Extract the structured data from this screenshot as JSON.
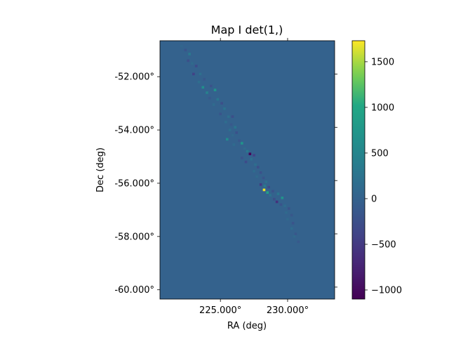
{
  "chart_data": {
    "type": "heatmap",
    "title": "Map I det(1,)",
    "xlabel": "RA (deg)",
    "ylabel": "Dec (deg)",
    "x_ticks": [
      225.0,
      230.0
    ],
    "x_tick_labels": [
      "225.000°",
      "230.000°"
    ],
    "y_ticks": [
      -52.0,
      -54.0,
      -56.0,
      -58.0,
      -60.0
    ],
    "y_tick_labels": [
      "-52.000°",
      "-54.000°",
      "-56.000°",
      "-58.000°",
      "-60.000°"
    ],
    "xlim": [
      220.5,
      233.5
    ],
    "ylim": [
      -60.35,
      -50.65
    ],
    "background_value": 0,
    "colorbar": {
      "colormap": "viridis",
      "range": [
        -1100,
        1730
      ],
      "ticks": [
        1500,
        1000,
        500,
        0,
        -500,
        -1000
      ],
      "tick_labels": [
        "1500",
        "1000",
        "500",
        "0",
        "−500",
        "−1000"
      ]
    },
    "track_pixels": [
      [
        222.1,
        -50.85,
        60
      ],
      [
        222.4,
        -51.0,
        -180
      ],
      [
        222.7,
        -51.15,
        350
      ],
      [
        222.6,
        -51.4,
        -250
      ],
      [
        222.9,
        -51.5,
        120
      ],
      [
        223.2,
        -51.6,
        -300
      ],
      [
        223.0,
        -51.9,
        -420
      ],
      [
        223.5,
        -51.9,
        200
      ],
      [
        223.8,
        -52.1,
        -150
      ],
      [
        223.4,
        -52.2,
        180
      ],
      [
        223.7,
        -52.4,
        650
      ],
      [
        224.3,
        -52.35,
        -200
      ],
      [
        224.0,
        -52.6,
        450
      ],
      [
        224.6,
        -52.5,
        750
      ],
      [
        224.2,
        -52.8,
        -120
      ],
      [
        224.8,
        -52.85,
        300
      ],
      [
        225.1,
        -53.0,
        -250
      ],
      [
        224.5,
        -53.05,
        150
      ],
      [
        225.3,
        -53.2,
        250
      ],
      [
        225.0,
        -53.4,
        -180
      ],
      [
        225.6,
        -53.5,
        200
      ],
      [
        225.9,
        -53.5,
        -250
      ],
      [
        225.4,
        -53.7,
        160
      ],
      [
        225.8,
        -53.8,
        -120
      ],
      [
        226.1,
        -53.9,
        300
      ],
      [
        225.7,
        -54.0,
        180
      ],
      [
        226.2,
        -54.1,
        -220
      ],
      [
        225.9,
        -54.2,
        100
      ],
      [
        225.5,
        -54.35,
        600
      ],
      [
        226.4,
        -54.4,
        -150
      ],
      [
        226.6,
        -54.5,
        700
      ],
      [
        226.0,
        -54.55,
        150
      ],
      [
        226.8,
        -54.7,
        120
      ],
      [
        227.0,
        -54.8,
        350
      ],
      [
        227.2,
        -54.9,
        -1050
      ],
      [
        227.5,
        -54.95,
        -400
      ],
      [
        226.6,
        -55.05,
        -180
      ],
      [
        227.3,
        -55.1,
        200
      ],
      [
        226.9,
        -55.2,
        -300
      ],
      [
        227.6,
        -55.3,
        180
      ],
      [
        227.8,
        -55.4,
        -250
      ],
      [
        227.5,
        -55.55,
        150
      ],
      [
        228.0,
        -55.6,
        -220
      ],
      [
        227.7,
        -55.75,
        120
      ],
      [
        228.2,
        -55.8,
        -180
      ],
      [
        228.4,
        -55.95,
        200
      ],
      [
        228.0,
        -56.05,
        -500
      ],
      [
        228.3,
        -56.1,
        350
      ],
      [
        228.6,
        -56.15,
        -300
      ],
      [
        228.25,
        -56.25,
        1700
      ],
      [
        228.5,
        -56.35,
        900
      ],
      [
        228.9,
        -56.3,
        -200
      ],
      [
        228.7,
        -56.45,
        250
      ],
      [
        229.3,
        -56.4,
        300
      ],
      [
        229.6,
        -56.55,
        700
      ],
      [
        229.0,
        -56.6,
        -250
      ],
      [
        229.2,
        -56.7,
        -600
      ],
      [
        229.5,
        -56.8,
        -180
      ],
      [
        229.8,
        -56.85,
        150
      ],
      [
        230.1,
        -56.95,
        -200
      ],
      [
        229.9,
        -57.1,
        120
      ],
      [
        230.3,
        -57.2,
        -150
      ],
      [
        230.0,
        -57.35,
        100
      ],
      [
        230.4,
        -57.5,
        -180
      ],
      [
        230.3,
        -57.7,
        150
      ],
      [
        230.6,
        -57.9,
        -150
      ],
      [
        230.5,
        -58.0,
        100
      ],
      [
        230.8,
        -58.2,
        -120
      ]
    ]
  }
}
